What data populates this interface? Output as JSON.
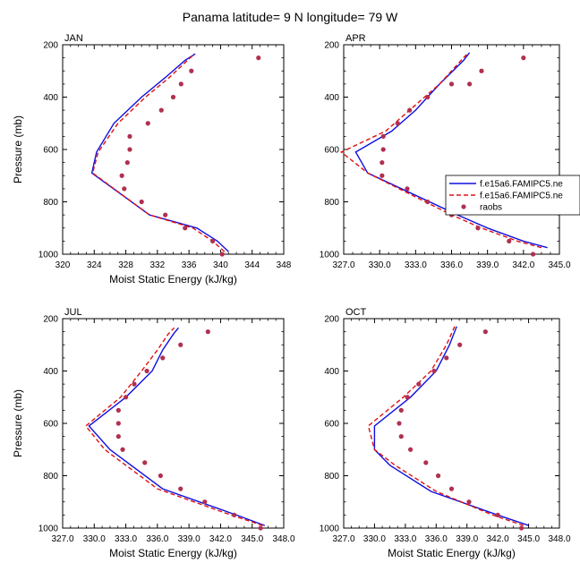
{
  "title": "Panama  latitude= 9 N longitude= 79 W",
  "colors": {
    "model1": "#1010e0",
    "model2": "#e01010",
    "obs": "#b03050"
  },
  "legend": {
    "entries": [
      {
        "label": "f.e15a6.FAMIPC5.ne",
        "style": "solid",
        "color": "#1010e0"
      },
      {
        "label": "f.e15a6.FAMIPC5.ne",
        "style": "dashed",
        "color": "#e01010"
      },
      {
        "label": "raobs",
        "style": "dots",
        "color": "#b03050"
      }
    ],
    "placement": "right of APR panel"
  },
  "chart_data": [
    {
      "type": "line",
      "title": "JAN",
      "xlabel": "Moist Static Energy (kJ/kg)",
      "ylabel": "Pressure (mb)",
      "xlim": [
        320,
        348
      ],
      "ylim": [
        1000,
        200
      ],
      "xticks": [
        "320",
        "324",
        "328",
        "332",
        "336",
        "340",
        "344",
        "348"
      ],
      "yticks": [
        "200",
        "400",
        "600",
        "800",
        "1000"
      ],
      "series": [
        {
          "name": "f.e15a6.FAMIPC5.ne",
          "style": "solid",
          "color": "#1010e0",
          "x": [
            341.0,
            339.6,
            337.0,
            331.0,
            323.7,
            324.3,
            326.5,
            330.0,
            333.0,
            335.5,
            336.8
          ],
          "y": [
            990,
            950,
            900,
            850,
            690,
            610,
            500,
            400,
            325,
            260,
            235
          ]
        },
        {
          "name": "f.e15a6.FAMIPC5.ne",
          "style": "dashed",
          "color": "#e01010",
          "x": [
            340.5,
            339.0,
            336.5,
            331.0,
            323.8,
            324.5,
            327.0,
            330.5,
            333.5,
            335.8,
            336.7
          ],
          "y": [
            990,
            950,
            900,
            850,
            690,
            610,
            500,
            400,
            325,
            260,
            235
          ]
        },
        {
          "name": "raobs",
          "style": "dots",
          "color": "#b03050",
          "x": [
            340.2,
            339.0,
            335.5,
            333.0,
            330.0,
            327.8,
            327.5,
            328.2,
            328.5,
            328.5,
            330.8,
            332.5,
            334.0,
            335.0,
            336.3,
            344.8
          ],
          "y": [
            1000,
            950,
            900,
            850,
            800,
            750,
            700,
            650,
            600,
            550,
            500,
            450,
            400,
            350,
            300,
            250
          ]
        }
      ]
    },
    {
      "type": "line",
      "title": "APR",
      "xlabel": "",
      "ylabel": "",
      "xlim": [
        327,
        345
      ],
      "ylim": [
        1000,
        200
      ],
      "xticks": [
        "327.0",
        "330.0",
        "333.0",
        "336.0",
        "339.0",
        "342.0",
        "345.0"
      ],
      "yticks": [
        "200",
        "400",
        "600",
        "800",
        "1000"
      ],
      "series": [
        {
          "name": "f.e15a6.FAMIPC5.ne",
          "style": "solid",
          "color": "#1010e0",
          "x": [
            344.0,
            342.0,
            339.0,
            336.5,
            329.0,
            328.0,
            331.0,
            333.0,
            335.0,
            337.0,
            337.5
          ],
          "y": [
            975,
            950,
            900,
            850,
            690,
            610,
            530,
            450,
            350,
            260,
            230
          ]
        },
        {
          "name": "f.e15a6.FAMIPC5.ne",
          "style": "dashed",
          "color": "#e01010",
          "x": [
            343.5,
            341.5,
            338.5,
            336.0,
            329.0,
            326.8,
            330.5,
            332.5,
            335.0,
            336.8,
            337.4
          ],
          "y": [
            975,
            950,
            900,
            850,
            690,
            610,
            530,
            450,
            350,
            260,
            230
          ]
        },
        {
          "name": "raobs",
          "style": "dots",
          "color": "#b03050",
          "x": [
            342.8,
            340.8,
            338.2,
            336.0,
            334.0,
            332.3,
            330.2,
            330.2,
            330.3,
            330.3,
            331.5,
            332.5,
            334.0,
            336.0,
            337.5,
            338.5,
            342.0
          ],
          "y": [
            1000,
            950,
            900,
            850,
            800,
            750,
            700,
            650,
            600,
            550,
            500,
            450,
            400,
            350,
            350,
            300,
            250
          ]
        }
      ]
    },
    {
      "type": "line",
      "title": "JUL",
      "xlabel": "Moist Static Energy (kJ/kg)",
      "ylabel": "Pressure (mb)",
      "xlim": [
        327,
        348
      ],
      "ylim": [
        1000,
        200
      ],
      "xticks": [
        "327.0",
        "330.0",
        "333.0",
        "336.0",
        "339.0",
        "342.0",
        "345.0",
        "348.0"
      ],
      "yticks": [
        "200",
        "400",
        "600",
        "800",
        "1000"
      ],
      "series": [
        {
          "name": "f.e15a6.FAMIPC5.ne",
          "style": "solid",
          "color": "#1010e0",
          "x": [
            346.2,
            343.5,
            340.0,
            336.5,
            331.5,
            329.5,
            333.0,
            335.5,
            336.5,
            337.5,
            338.0
          ],
          "y": [
            990,
            950,
            900,
            850,
            700,
            610,
            500,
            400,
            320,
            260,
            235
          ]
        },
        {
          "name": "f.e15a6.FAMIPC5.ne",
          "style": "dashed",
          "color": "#e01010",
          "x": [
            346.0,
            343.0,
            339.5,
            336.0,
            331.0,
            329.2,
            332.5,
            334.5,
            336.0,
            337.0,
            337.6
          ],
          "y": [
            990,
            950,
            900,
            850,
            700,
            610,
            500,
            400,
            320,
            260,
            235
          ]
        },
        {
          "name": "raobs",
          "style": "dots",
          "color": "#b03050",
          "x": [
            345.8,
            343.3,
            340.5,
            338.2,
            336.3,
            334.8,
            332.7,
            332.3,
            332.3,
            332.3,
            333.0,
            333.8,
            335.0,
            336.5,
            338.2,
            340.8
          ],
          "y": [
            1000,
            950,
            900,
            850,
            800,
            750,
            700,
            650,
            600,
            550,
            500,
            450,
            400,
            350,
            300,
            250
          ]
        }
      ]
    },
    {
      "type": "line",
      "title": "OCT",
      "xlabel": "Moist Static Energy (kJ/kg)",
      "ylabel": "",
      "xlim": [
        327,
        348
      ],
      "ylim": [
        1000,
        200
      ],
      "xticks": [
        "327.0",
        "330.0",
        "333.0",
        "336.0",
        "339.0",
        "342.0",
        "345.0",
        "348.0"
      ],
      "yticks": [
        "200",
        "400",
        "600",
        "800",
        "1000"
      ],
      "series": [
        {
          "name": "f.e15a6.FAMIPC5.ne",
          "style": "solid",
          "color": "#1010e0",
          "x": [
            345.0,
            342.0,
            335.5,
            331.5,
            330.0,
            330.0,
            333.5,
            336.0,
            337.3,
            338.0
          ],
          "y": [
            990,
            950,
            860,
            760,
            700,
            610,
            500,
            400,
            300,
            230
          ]
        },
        {
          "name": "f.e15a6.FAMIPC5.ne",
          "style": "dashed",
          "color": "#e01010",
          "x": [
            344.5,
            341.5,
            336.0,
            332.0,
            330.0,
            329.4,
            332.8,
            335.5,
            337.0,
            337.8
          ],
          "y": [
            990,
            950,
            860,
            760,
            700,
            610,
            500,
            400,
            300,
            230
          ]
        },
        {
          "name": "raobs",
          "style": "dots",
          "color": "#b03050",
          "x": [
            344.3,
            342.0,
            339.2,
            337.5,
            336.2,
            335.0,
            333.5,
            332.6,
            332.4,
            332.6,
            333.2,
            334.3,
            335.8,
            337.0,
            338.3,
            340.8
          ],
          "y": [
            1000,
            950,
            900,
            850,
            800,
            750,
            700,
            650,
            600,
            550,
            500,
            450,
            400,
            350,
            300,
            250
          ]
        }
      ]
    }
  ]
}
